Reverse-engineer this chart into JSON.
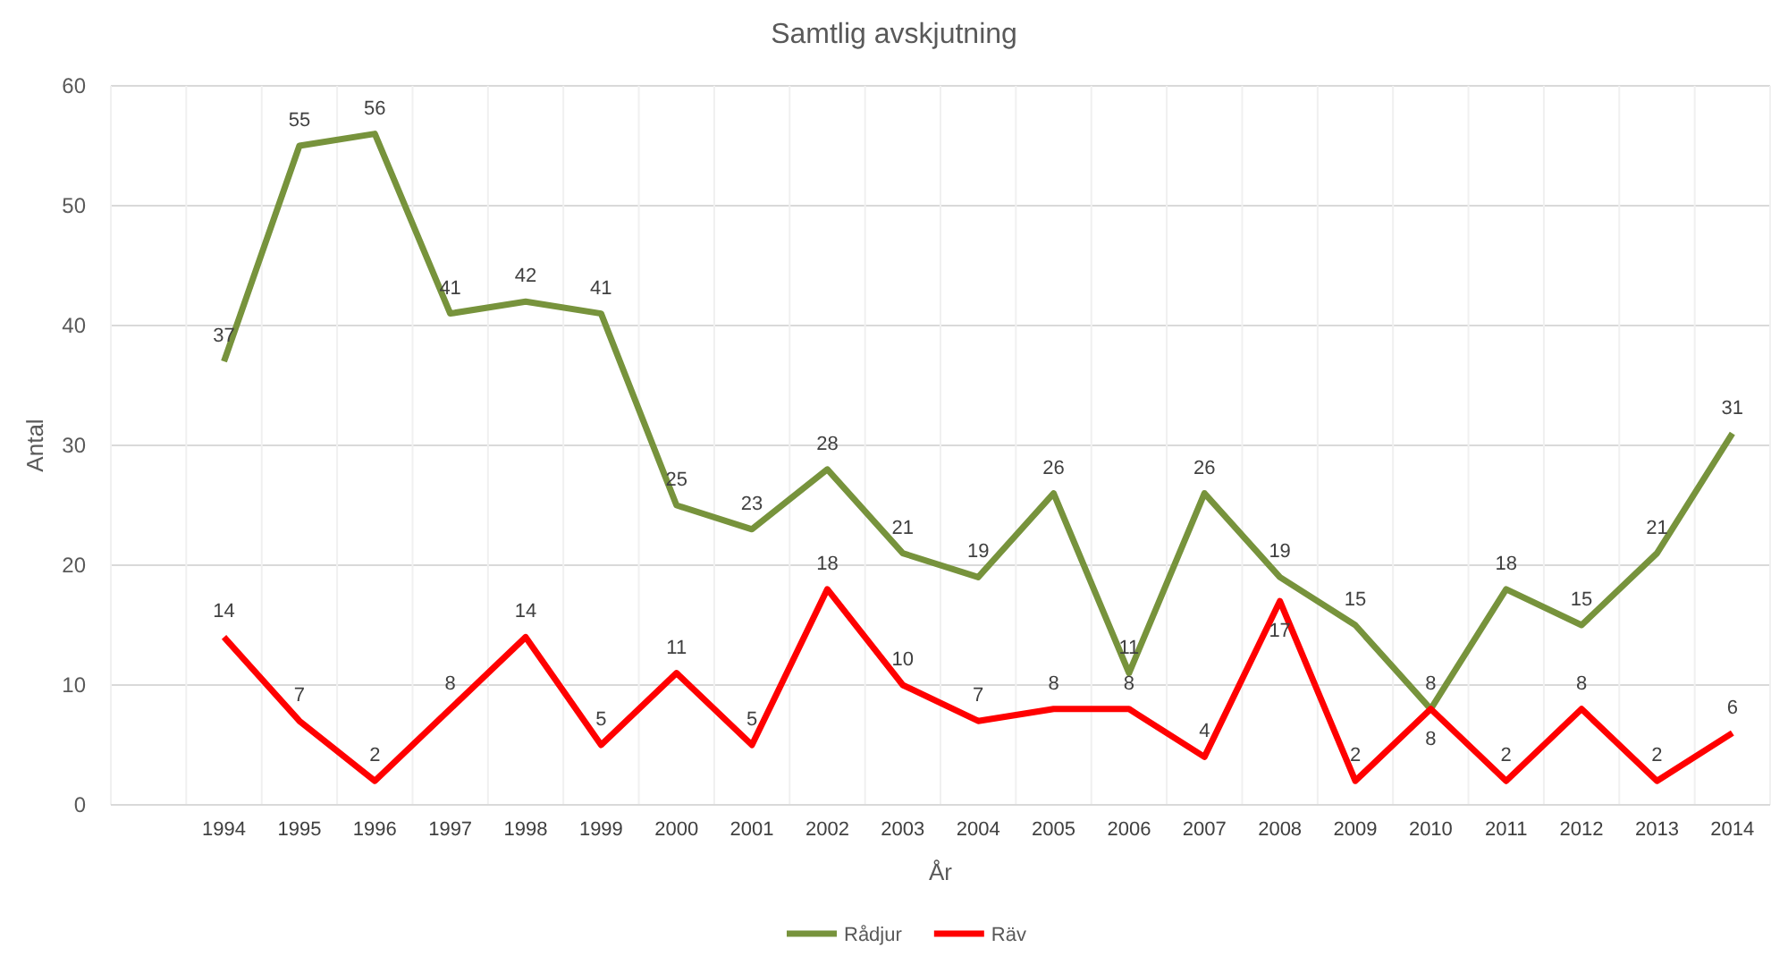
{
  "chart_data": {
    "type": "line",
    "title": "Samtlig avskjutning",
    "xlabel": "År",
    "ylabel": "Antal",
    "categories": [
      null,
      "1994",
      "1995",
      "1996",
      "1997",
      "1998",
      "1999",
      "2000",
      "2001",
      "2002",
      "2003",
      "2004",
      "2005",
      "2006",
      "2007",
      "2008",
      "2009",
      "2010",
      "2011",
      "2012",
      "2013",
      "2014"
    ],
    "series": [
      {
        "name": "Rådjur",
        "color": "#77933c",
        "values": [
          null,
          37,
          55,
          56,
          41,
          42,
          41,
          25,
          23,
          28,
          21,
          19,
          26,
          11,
          26,
          19,
          15,
          8,
          18,
          15,
          21,
          31
        ]
      },
      {
        "name": "Räv",
        "color": "#ff0000",
        "values": [
          null,
          14,
          7,
          2,
          8,
          14,
          5,
          11,
          5,
          18,
          10,
          7,
          8,
          8,
          4,
          17,
          2,
          8,
          2,
          8,
          2,
          6
        ]
      }
    ],
    "ylim": [
      0,
      60
    ],
    "yticks": [
      0,
      10,
      20,
      30,
      40,
      50,
      60
    ],
    "grid": true,
    "legend": "bottom",
    "data_labels": true,
    "marker": "none",
    "line_style": "solid"
  }
}
